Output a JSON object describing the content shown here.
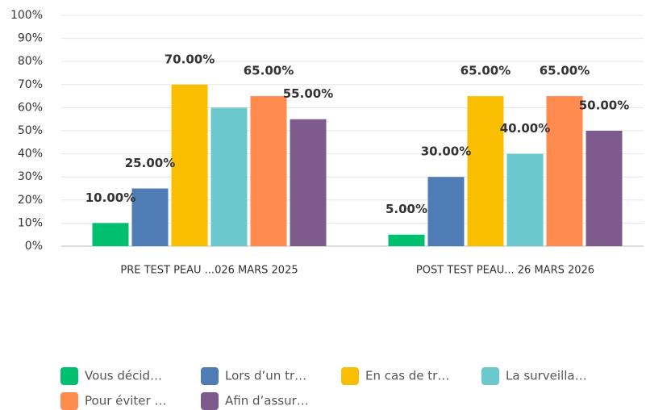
{
  "chart_data": {
    "type": "bar",
    "categories": [
      "PRE TEST PEAU ...026 MARS 2025",
      "POST TEST PEAU... 26 MARS 2026"
    ],
    "series": [
      {
        "name": "Vous décid…",
        "color": "#00bf6f",
        "values": [
          10,
          5
        ],
        "value_labels": [
          "10.00%",
          "5.00%"
        ]
      },
      {
        "name": "Lors d’un tr…",
        "color": "#507cb6",
        "values": [
          25,
          30
        ],
        "value_labels": [
          "25.00%",
          "30.00%"
        ]
      },
      {
        "name": "En cas de tr…",
        "color": "#f9be00",
        "values": [
          70,
          65
        ],
        "value_labels": [
          "70.00%",
          "65.00%"
        ]
      },
      {
        "name": "La surveilla…",
        "color": "#6bc8cd",
        "values": [
          60,
          40
        ],
        "value_labels": [
          null,
          "40.00%"
        ]
      },
      {
        "name": "Pour éviter …",
        "color": "#ff8b4f",
        "values": [
          65,
          65
        ],
        "value_labels": [
          "65.00%",
          "65.00%"
        ]
      },
      {
        "name": "Afin d’assur…",
        "color": "#7d5c8d",
        "values": [
          55,
          50
        ],
        "value_labels": [
          "55.00%",
          "50.00%"
        ]
      }
    ],
    "ylim": [
      0,
      100
    ],
    "yticks": [
      {
        "value": 0,
        "label": "0%"
      },
      {
        "value": 10,
        "label": "10%"
      },
      {
        "value": 20,
        "label": "20%"
      },
      {
        "value": 30,
        "label": "30%"
      },
      {
        "value": 40,
        "label": "40%"
      },
      {
        "value": 50,
        "label": "50%"
      },
      {
        "value": 60,
        "label": "60%"
      },
      {
        "value": 70,
        "label": "70%"
      },
      {
        "value": 80,
        "label": "80%"
      },
      {
        "value": 90,
        "label": "90%"
      },
      {
        "value": 100,
        "label": "100%"
      }
    ],
    "grid": true,
    "legend": "bottom"
  }
}
